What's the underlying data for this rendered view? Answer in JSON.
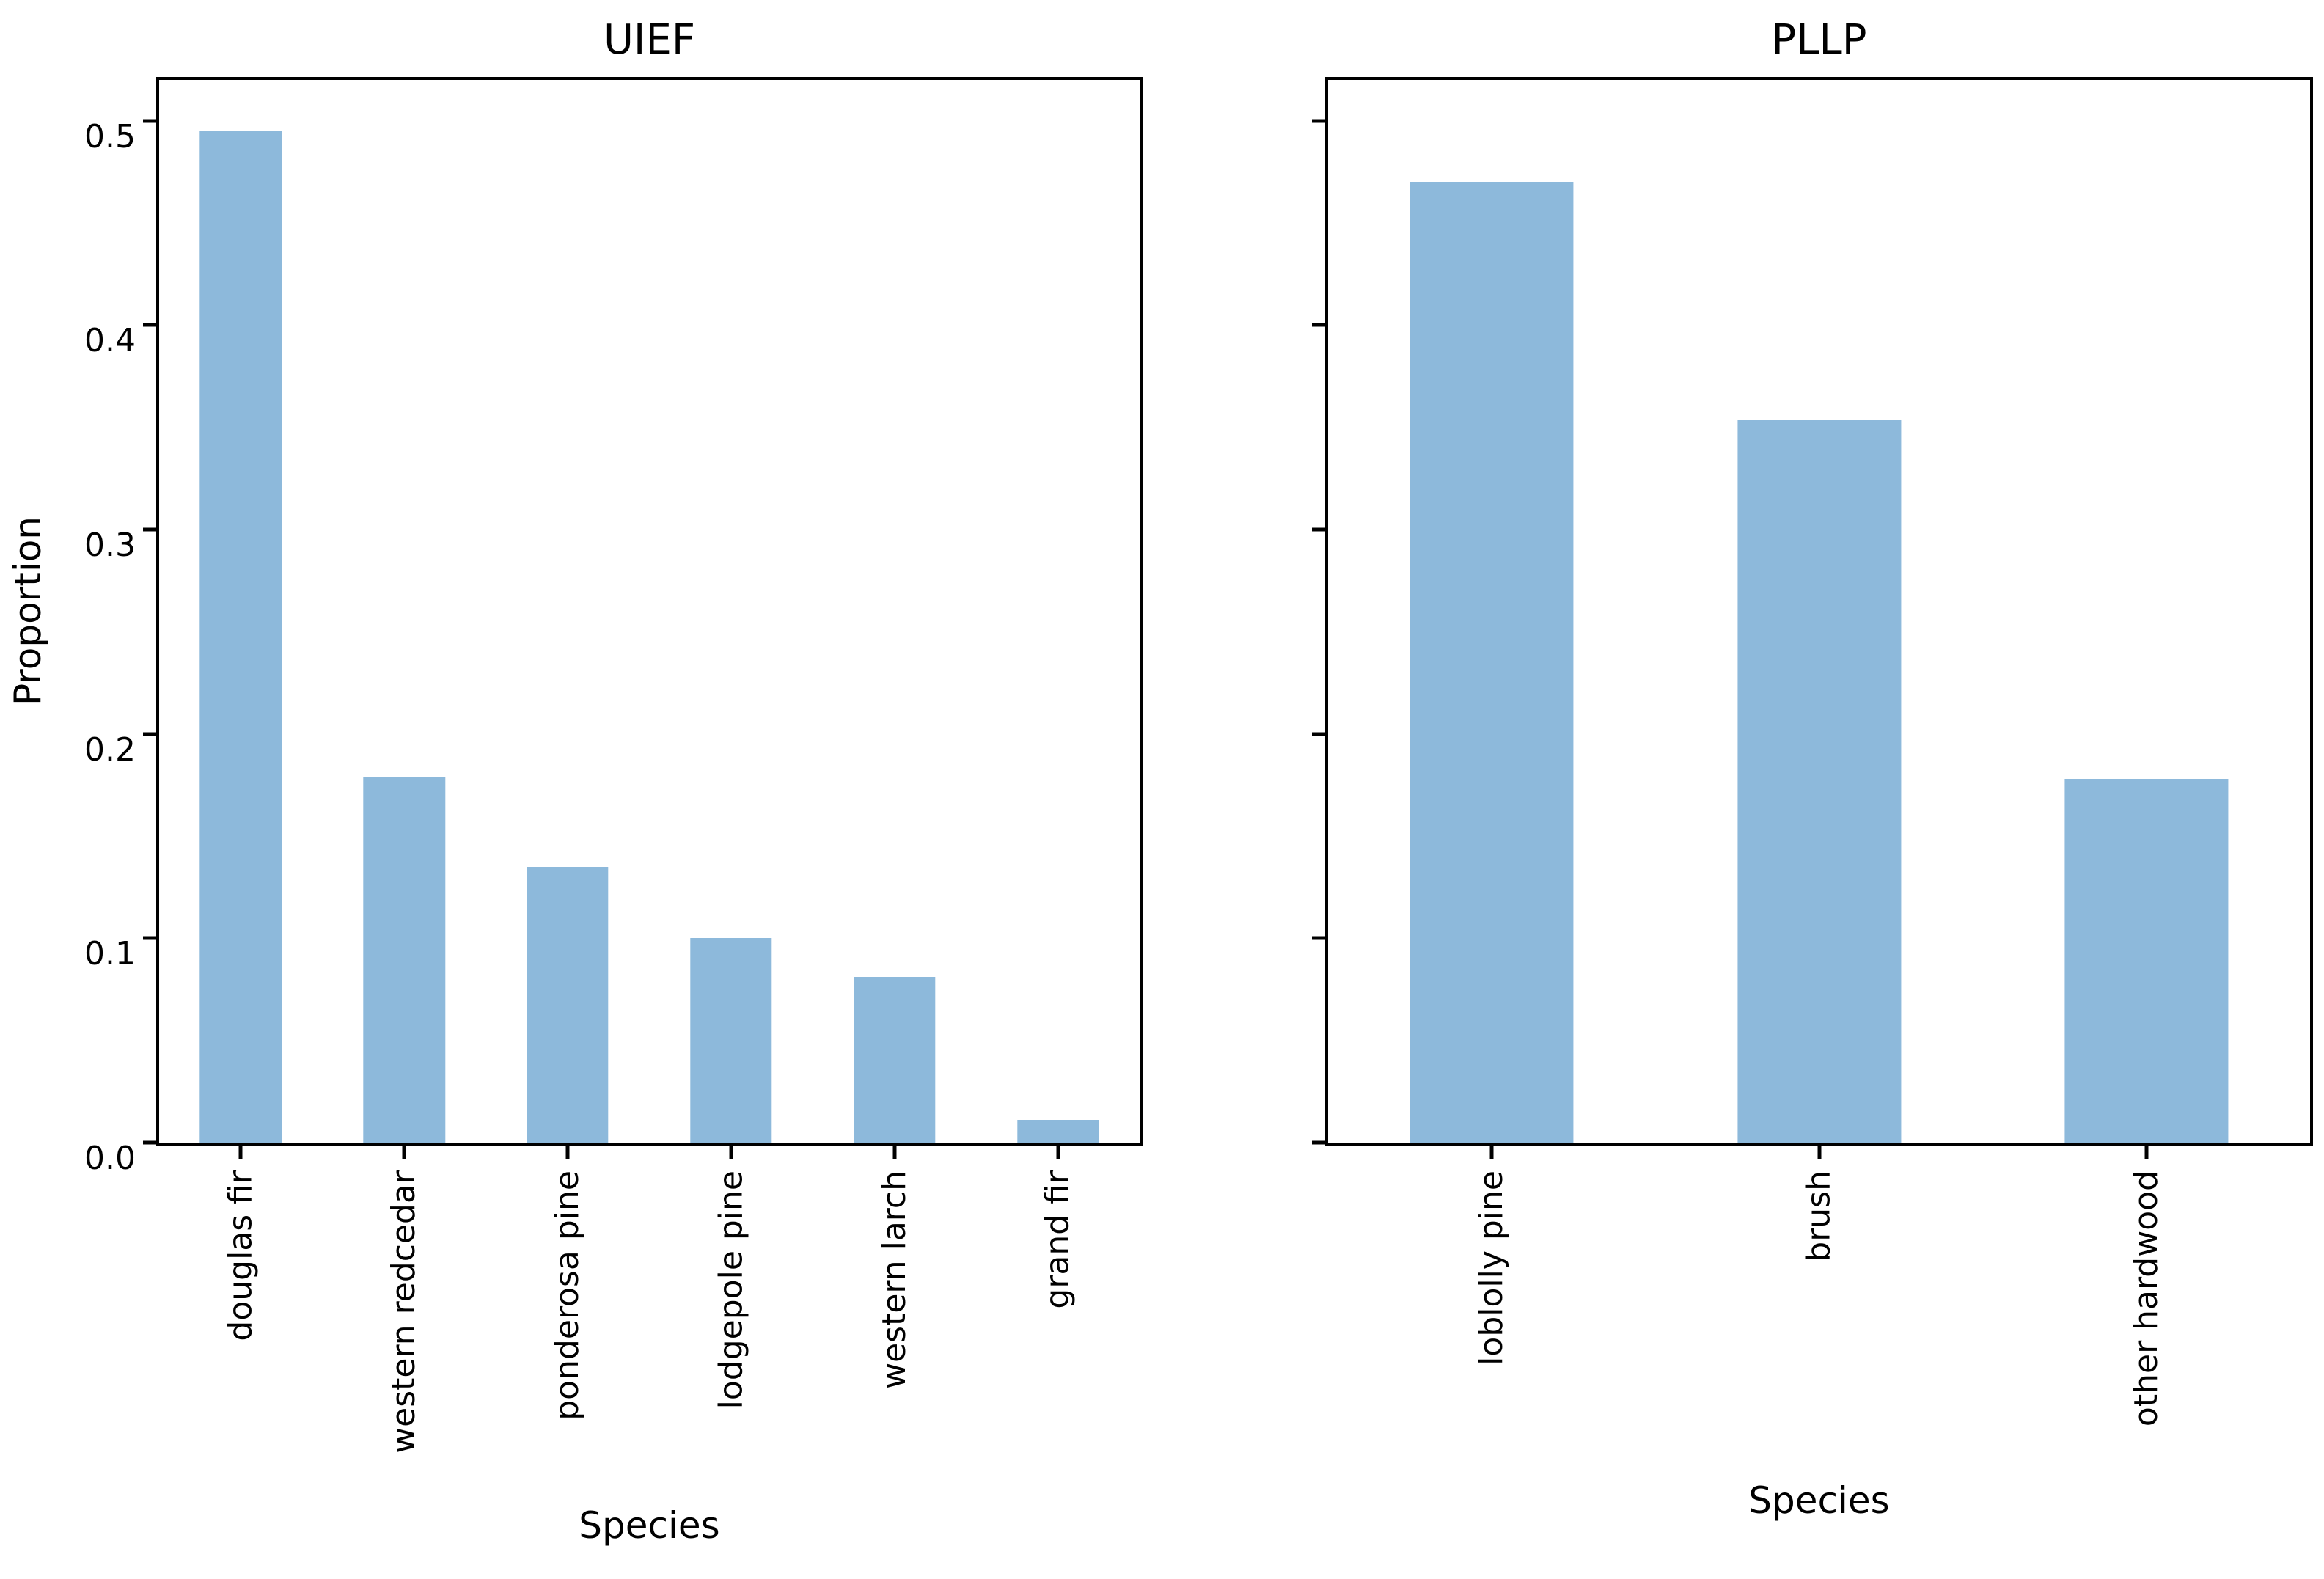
{
  "figure": {
    "background_color": "#ffffff",
    "text_color": "#000000",
    "bar_color": "#8db9db",
    "spine_color": "#000000"
  },
  "chart_data": [
    {
      "type": "bar",
      "title": "UIEF",
      "xlabel": "Species",
      "ylabel": "Proportion",
      "categories": [
        "douglas fir",
        "western redcedar",
        "ponderosa pine",
        "lodgepole pine",
        "western larch",
        "grand fir"
      ],
      "values": [
        0.495,
        0.179,
        0.135,
        0.1,
        0.081,
        0.011
      ],
      "ylim": [
        0,
        0.52
      ],
      "bar_width_fraction": 0.5,
      "grid": false,
      "legend": "none",
      "yticks": {
        "values": [
          0.0,
          0.1,
          0.2,
          0.3,
          0.4,
          0.5
        ],
        "labels": [
          "0.0",
          "0.1",
          "0.2",
          "0.3",
          "0.4",
          "0.5"
        ],
        "show_labels": true
      }
    },
    {
      "type": "bar",
      "title": "PLLP",
      "xlabel": "Species",
      "ylabel": "",
      "categories": [
        "loblolly pine",
        "brush",
        "other hardwood"
      ],
      "values": [
        0.47,
        0.354,
        0.178
      ],
      "ylim": [
        0,
        0.52
      ],
      "bar_width_fraction": 0.5,
      "grid": false,
      "legend": "none",
      "yticks": {
        "values": [
          0.0,
          0.1,
          0.2,
          0.3,
          0.4,
          0.5
        ],
        "labels": [],
        "show_labels": false
      }
    }
  ]
}
